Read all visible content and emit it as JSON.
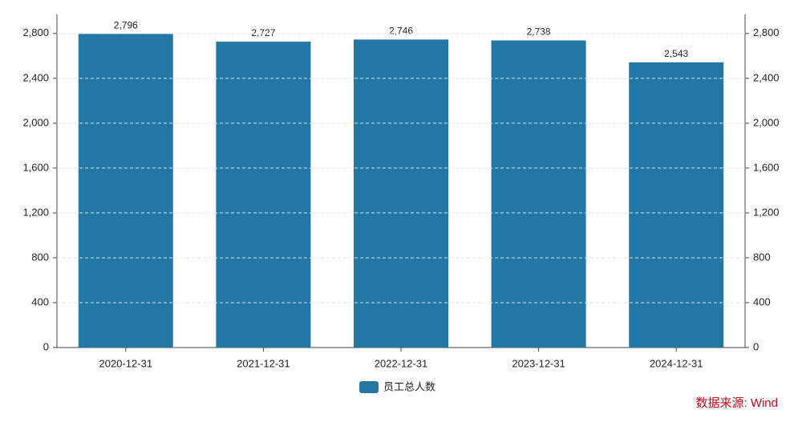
{
  "chart_data": {
    "type": "bar",
    "categories": [
      "2020-12-31",
      "2021-12-31",
      "2022-12-31",
      "2023-12-31",
      "2024-12-31"
    ],
    "series": [
      {
        "name": "员工总人数",
        "color": "#2377a4",
        "values": [
          2796,
          2727,
          2746,
          2738,
          2543
        ],
        "value_labels": [
          "2,796",
          "2,727",
          "2,746",
          "2,738",
          "2,543"
        ]
      }
    ],
    "ylim": [
      0,
      2970
    ],
    "yticks": [
      0,
      400,
      800,
      {
        "value": 1200,
        "label": "1,200"
      },
      {
        "value": 1600,
        "label": "1,600"
      },
      {
        "value": 2000,
        "label": "2,000"
      },
      {
        "value": 2400,
        "label": "2,400"
      },
      {
        "value": 2800,
        "label": "2,800"
      }
    ],
    "y2lim": [
      0,
      2970
    ],
    "y2ticks": [
      0,
      400,
      800,
      {
        "value": 1200,
        "label": "1,200"
      },
      {
        "value": 1600,
        "label": "1,600"
      },
      {
        "value": 2000,
        "label": "2,000"
      },
      {
        "value": 2400,
        "label": "2,400"
      },
      {
        "value": 2800,
        "label": "2,800"
      }
    ],
    "grid": true,
    "source": "数据来源: Wind"
  }
}
